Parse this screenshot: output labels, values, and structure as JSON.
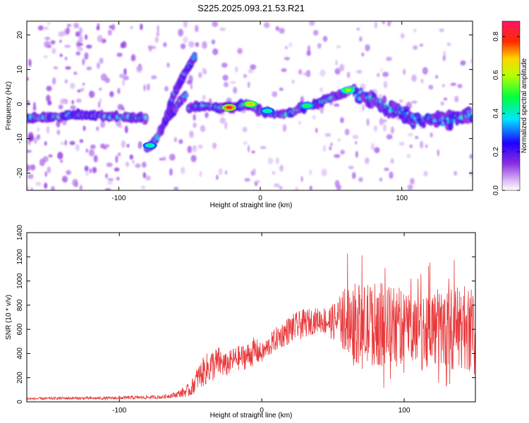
{
  "title": "S225.2025.093.21.53.R21",
  "chart_data": [
    {
      "type": "heatmap",
      "title": "S225.2025.093.21.53.R21",
      "xlabel": "Height of straight line (km)",
      "ylabel": "Frequency (Hz)",
      "xlim": [
        -165,
        150
      ],
      "ylim": [
        -25,
        24
      ],
      "xticks": [
        -100,
        0,
        100
      ],
      "xtick_labels": [
        "-100",
        "0",
        "100"
      ],
      "yticks": [
        -20,
        -10,
        0,
        10,
        20
      ],
      "ytick_labels": [
        "-20",
        "-10",
        "0",
        "10",
        "20"
      ],
      "colorbar": {
        "label": "Normalized spectral amplitude",
        "range": [
          0.0,
          0.88
        ],
        "ticks": [
          0.0,
          0.2,
          0.4,
          0.6,
          0.8
        ],
        "tick_labels": [
          "0.0",
          "0.2",
          "0.4",
          "0.6",
          "0.8"
        ],
        "colormap": "rainbow (white to purple, blue, cyan, green, yellow, red, magenta)"
      },
      "ridges": [
        {
          "x": [
            -165,
            -150,
            -130,
            -110,
            -90,
            -80
          ],
          "y": [
            -4,
            -4,
            -3,
            -3.5,
            -4,
            -4
          ]
        },
        {
          "x": [
            -80,
            -73,
            -66,
            -62
          ],
          "y": [
            -13,
            -10,
            -4,
            2
          ]
        },
        {
          "x": [
            -62,
            -57,
            -52,
            -46
          ],
          "y": [
            2,
            6,
            10,
            14
          ]
        },
        {
          "x": [
            -65,
            -58,
            -52
          ],
          "y": [
            -4,
            0,
            3
          ]
        },
        {
          "x": [
            -50,
            -40,
            -30,
            -20,
            -10,
            0,
            10,
            20
          ],
          "y": [
            -1,
            -0.5,
            -1,
            -1,
            0,
            -2,
            -3,
            -3
          ]
        },
        {
          "x": [
            20,
            30,
            40,
            50,
            60,
            67
          ],
          "y": [
            -3,
            -1,
            0,
            2,
            3,
            5
          ]
        },
        {
          "x": [
            67,
            80,
            90,
            100,
            110,
            120,
            130,
            140,
            150
          ],
          "y": [
            3,
            1,
            -1,
            -2,
            -5,
            -4,
            -5,
            -4,
            -3
          ]
        }
      ],
      "peaks": [
        {
          "x": -22,
          "y": -1,
          "value": 0.85
        },
        {
          "x": -7,
          "y": 0,
          "value": 0.7
        },
        {
          "x": 62,
          "y": 4,
          "value": 0.6
        },
        {
          "x": -78,
          "y": -12,
          "value": 0.45
        },
        {
          "x": 33,
          "y": -0.5,
          "value": 0.5
        },
        {
          "x": 5,
          "y": -2,
          "value": 0.45
        }
      ]
    },
    {
      "type": "line",
      "xlabel": "Height of straight line (km)",
      "ylabel": "SNR (10 * v/v)",
      "xlim": [
        -165,
        150
      ],
      "ylim": [
        0,
        1400
      ],
      "xticks": [
        -100,
        0,
        100
      ],
      "xtick_labels": [
        "-100",
        "0",
        "100"
      ],
      "yticks": [
        0,
        200,
        400,
        600,
        800,
        1000,
        1200,
        1400
      ],
      "ytick_labels": [
        "0",
        "200",
        "400",
        "600",
        "800",
        "1000",
        "1200",
        "1400"
      ],
      "color": "#e8383a",
      "envelope": {
        "x": [
          -165,
          -140,
          -110,
          -90,
          -70,
          -60,
          -50,
          -45,
          -40,
          -35,
          -30,
          -25,
          -20,
          -10,
          -5,
          0,
          10,
          20,
          30,
          40,
          50,
          60,
          70,
          80,
          90,
          100,
          110,
          120,
          130,
          140,
          150
        ],
        "mean": [
          25,
          30,
          30,
          35,
          40,
          60,
          100,
          200,
          260,
          300,
          330,
          300,
          350,
          380,
          420,
          400,
          520,
          600,
          650,
          680,
          660,
          700,
          620,
          650,
          620,
          640,
          600,
          620,
          600,
          620,
          600
        ],
        "spread": [
          10,
          12,
          12,
          15,
          15,
          25,
          60,
          100,
          130,
          140,
          130,
          100,
          100,
          110,
          120,
          80,
          100,
          120,
          120,
          100,
          150,
          300,
          350,
          350,
          350,
          300,
          320,
          330,
          340,
          350,
          380
        ]
      }
    }
  ]
}
